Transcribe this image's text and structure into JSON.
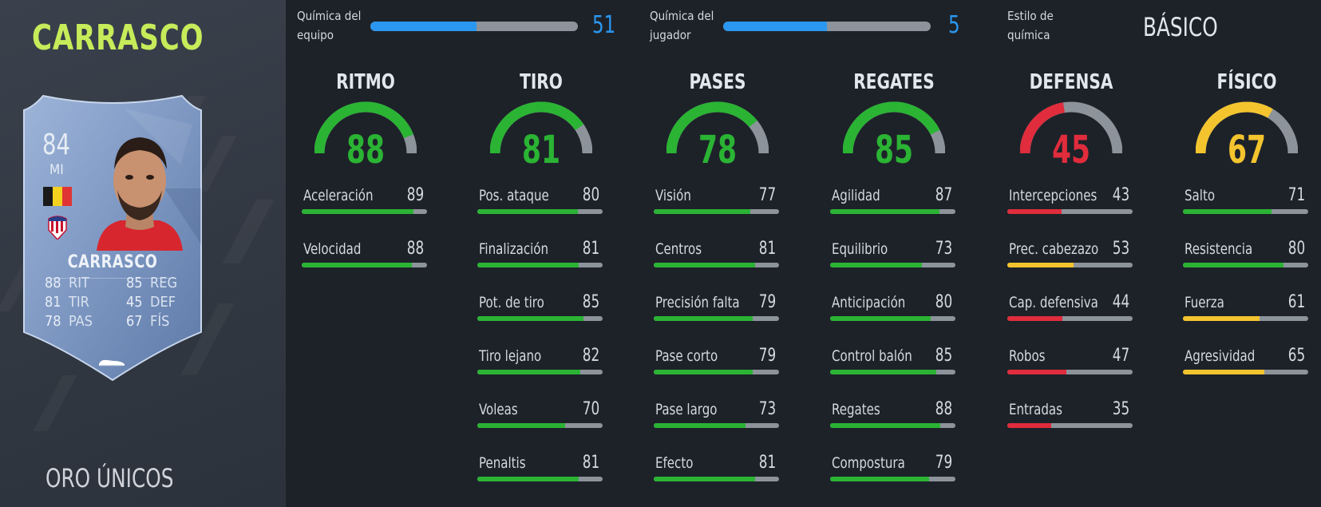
{
  "player": {
    "name": "CARRASCO",
    "card_type": "ORO ÚNICOS",
    "rating": "84",
    "position": "MI",
    "card_name": "CARRASCO",
    "card_stats": [
      {
        "value": "88",
        "label": "RIT"
      },
      {
        "value": "81",
        "label": "TIR"
      },
      {
        "value": "78",
        "label": "PAS"
      },
      {
        "value": "85",
        "label": "REG"
      },
      {
        "value": "45",
        "label": "DEF"
      },
      {
        "value": "67",
        "label": "FÍS"
      }
    ],
    "flag_colors": [
      "#1a1a1a",
      "#f2d21f",
      "#e03434"
    ],
    "badge_icon": "atletico-madrid-crest",
    "shoe_icon": "boot-icon"
  },
  "chemistry": {
    "team_label_1": "Química del",
    "team_label_2": "equipo",
    "team_value": "51",
    "team_fraction": 0.51,
    "player_label_1": "Química del",
    "player_label_2": "jugador",
    "player_value": "5",
    "player_fraction": 0.5,
    "style_label_1": "Estilo de",
    "style_label_2": "química",
    "style_value": "BÁSICO"
  },
  "colors": {
    "green": "#2bb334",
    "yellow": "#f3c42e",
    "red": "#e02c3c",
    "blue": "#2b97f0",
    "track": "#8c939b"
  },
  "categories": [
    {
      "title": "RITMO",
      "value": "88",
      "attributes": [
        {
          "name": "Aceleración",
          "value": "89"
        },
        {
          "name": "Velocidad",
          "value": "88"
        }
      ]
    },
    {
      "title": "TIRO",
      "value": "81",
      "attributes": [
        {
          "name": "Pos. ataque",
          "value": "80"
        },
        {
          "name": "Finalización",
          "value": "81"
        },
        {
          "name": "Pot. de tiro",
          "value": "85"
        },
        {
          "name": "Tiro lejano",
          "value": "82"
        },
        {
          "name": "Voleas",
          "value": "70"
        },
        {
          "name": "Penaltis",
          "value": "81"
        }
      ]
    },
    {
      "title": "PASES",
      "value": "78",
      "attributes": [
        {
          "name": "Visión",
          "value": "77"
        },
        {
          "name": "Centros",
          "value": "81"
        },
        {
          "name": "Precisión falta",
          "value": "79"
        },
        {
          "name": "Pase corto",
          "value": "79"
        },
        {
          "name": "Pase largo",
          "value": "73"
        },
        {
          "name": "Efecto",
          "value": "81"
        }
      ]
    },
    {
      "title": "REGATES",
      "value": "85",
      "attributes": [
        {
          "name": "Agilidad",
          "value": "87"
        },
        {
          "name": "Equilibrio",
          "value": "73"
        },
        {
          "name": "Anticipación",
          "value": "80"
        },
        {
          "name": "Control balón",
          "value": "85"
        },
        {
          "name": "Regates",
          "value": "88"
        },
        {
          "name": "Compostura",
          "value": "79"
        }
      ]
    },
    {
      "title": "DEFENSA",
      "value": "45",
      "attributes": [
        {
          "name": "Intercepciones",
          "value": "43"
        },
        {
          "name": "Prec. cabezazo",
          "value": "53"
        },
        {
          "name": "Cap. defensiva",
          "value": "44"
        },
        {
          "name": "Robos",
          "value": "47"
        },
        {
          "name": "Entradas",
          "value": "35"
        }
      ]
    },
    {
      "title": "FÍSICO",
      "value": "67",
      "attributes": [
        {
          "name": "Salto",
          "value": "71"
        },
        {
          "name": "Resistencia",
          "value": "80"
        },
        {
          "name": "Fuerza",
          "value": "61"
        },
        {
          "name": "Agresividad",
          "value": "65"
        }
      ]
    }
  ]
}
